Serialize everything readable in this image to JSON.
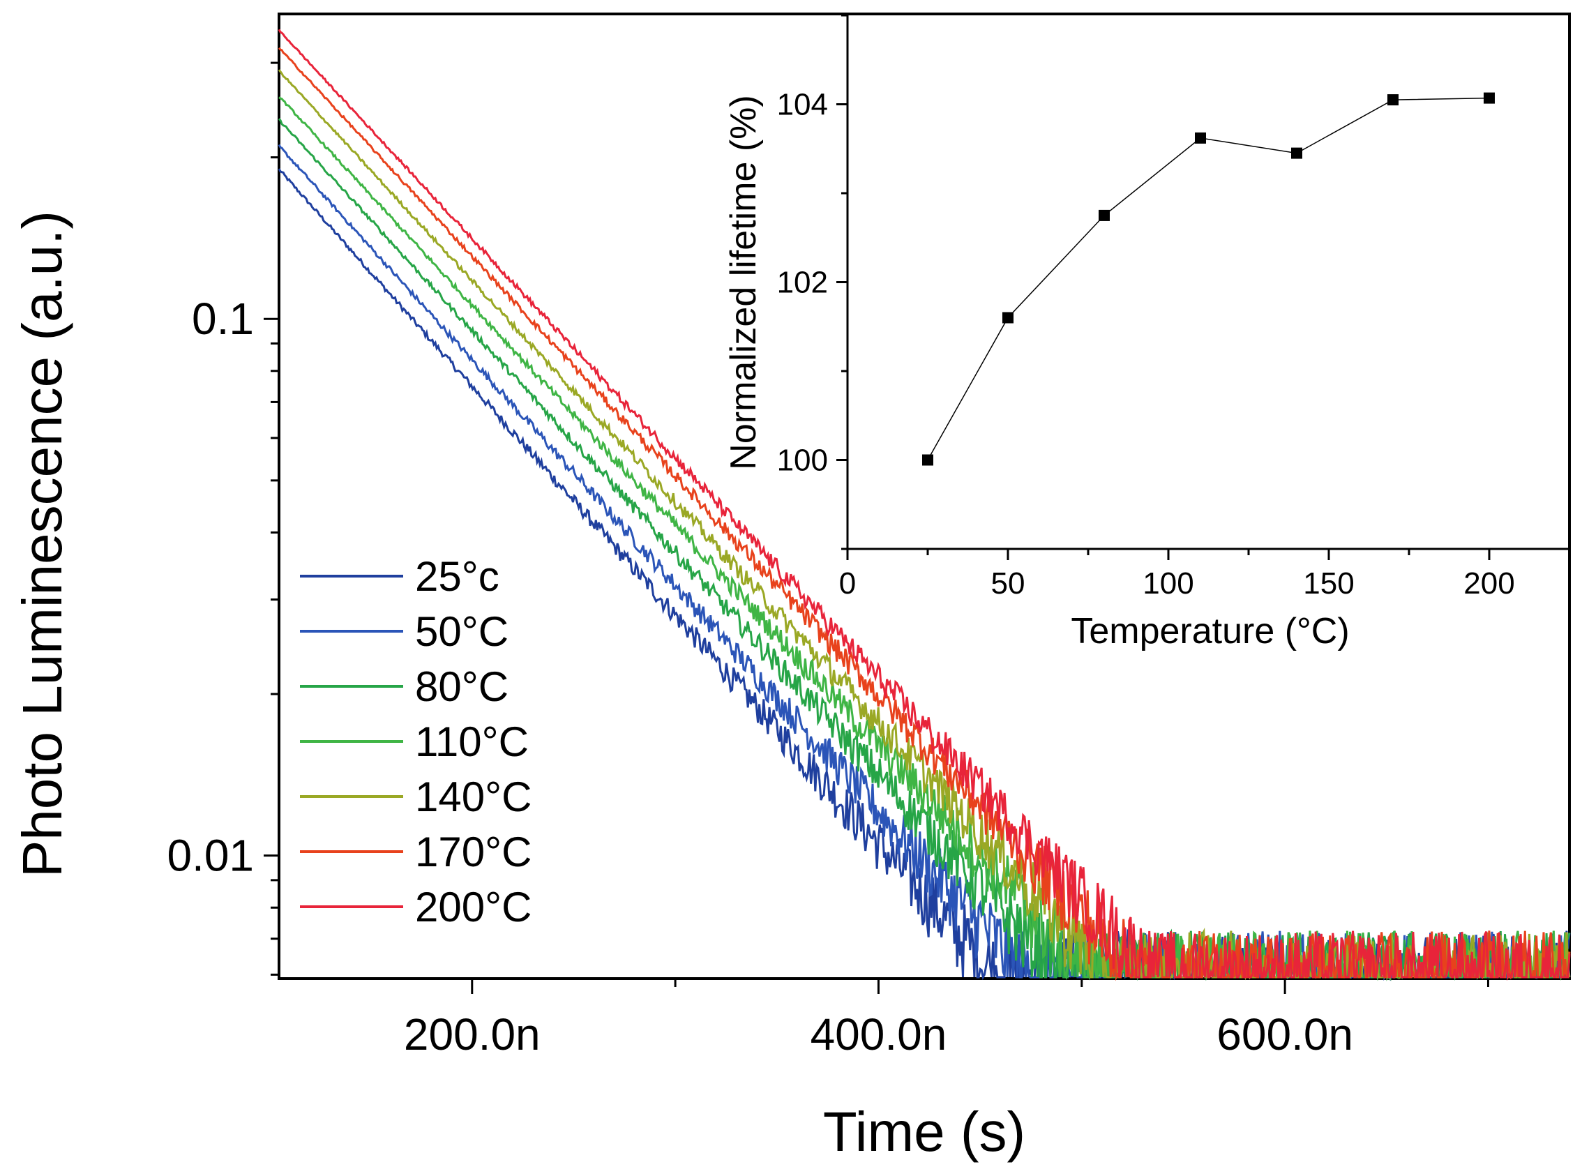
{
  "chart_data": [
    {
      "type": "line",
      "xlabel": "Time (s)",
      "ylabel": "Photo Luminescence (a.u.)",
      "yscale": "log",
      "xlim": [
        1.05e-07,
        7.4e-07
      ],
      "ylim": [
        0.0059,
        0.37
      ],
      "x_ticks": [
        {
          "value": 2e-07,
          "label": "200.0n"
        },
        {
          "value": 4e-07,
          "label": "400.0n"
        },
        {
          "value": 6e-07,
          "label": "600.0n"
        }
      ],
      "y_ticks": [
        {
          "value": 0.1,
          "label": "0.1"
        },
        {
          "value": 0.01,
          "label": "0.01"
        }
      ],
      "legend_position": "bottom-left",
      "noise_floor": 0.006,
      "series": [
        {
          "name": "25°c",
          "color": "#1f3f9e",
          "start_value": 0.19,
          "lifetime_s": 1.02e-07
        },
        {
          "name": "50°C",
          "color": "#2b55b8",
          "start_value": 0.21,
          "lifetime_s": 1.035e-07
        },
        {
          "name": "80°C",
          "color": "#26a547",
          "start_value": 0.235,
          "lifetime_s": 1.05e-07
        },
        {
          "name": "110°C",
          "color": "#3fb545",
          "start_value": 0.26,
          "lifetime_s": 1.06e-07
        },
        {
          "name": "140°C",
          "color": "#9aa825",
          "start_value": 0.29,
          "lifetime_s": 1.055e-07
        },
        {
          "name": "170°C",
          "color": "#e8421c",
          "start_value": 0.32,
          "lifetime_s": 1.062e-07
        },
        {
          "name": "200°C",
          "color": "#e8243a",
          "start_value": 0.345,
          "lifetime_s": 1.063e-07
        }
      ]
    },
    {
      "type": "line",
      "xlabel": "Temperature (°C)",
      "ylabel": "Normalized lifetime (%)",
      "xlim": [
        0,
        225
      ],
      "ylim": [
        99,
        105
      ],
      "x_ticks": [
        0,
        50,
        100,
        150,
        200
      ],
      "y_ticks": [
        100,
        102,
        104
      ],
      "series": [
        {
          "name": "",
          "color": "#000000",
          "x": [
            25,
            50,
            80,
            110,
            140,
            170,
            200
          ],
          "y": [
            100.0,
            101.6,
            102.75,
            103.62,
            103.45,
            104.05,
            104.07
          ]
        }
      ]
    }
  ]
}
